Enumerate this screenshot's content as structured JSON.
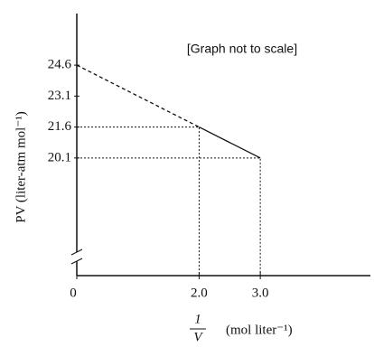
{
  "chart_data": {
    "type": "line",
    "annotation": "[Graph not to scale]",
    "ylabel": "PV (liter-atm mol⁻¹)",
    "xlabel": {
      "fraction": [
        "1",
        "V"
      ],
      "unit": "(mol liter⁻¹)"
    },
    "x": [
      0,
      2.0,
      3.0
    ],
    "series": [
      {
        "values": [
          24.6,
          21.6,
          20.1
        ],
        "color": "#111111"
      }
    ],
    "xlim": [
      0,
      4.8
    ],
    "xticks": [
      0,
      {
        "value": 2.0,
        "label": "2.0"
      },
      {
        "value": 3.0,
        "label": "3.0"
      }
    ],
    "ylim": [
      14.4,
      27.1
    ],
    "yticks": [
      {
        "value": 20.1,
        "label": "20.1"
      },
      {
        "value": 21.6,
        "label": "21.6"
      },
      {
        "value": 23.1,
        "label": "23.1"
      },
      {
        "value": 24.6,
        "label": "24.6"
      }
    ]
  }
}
